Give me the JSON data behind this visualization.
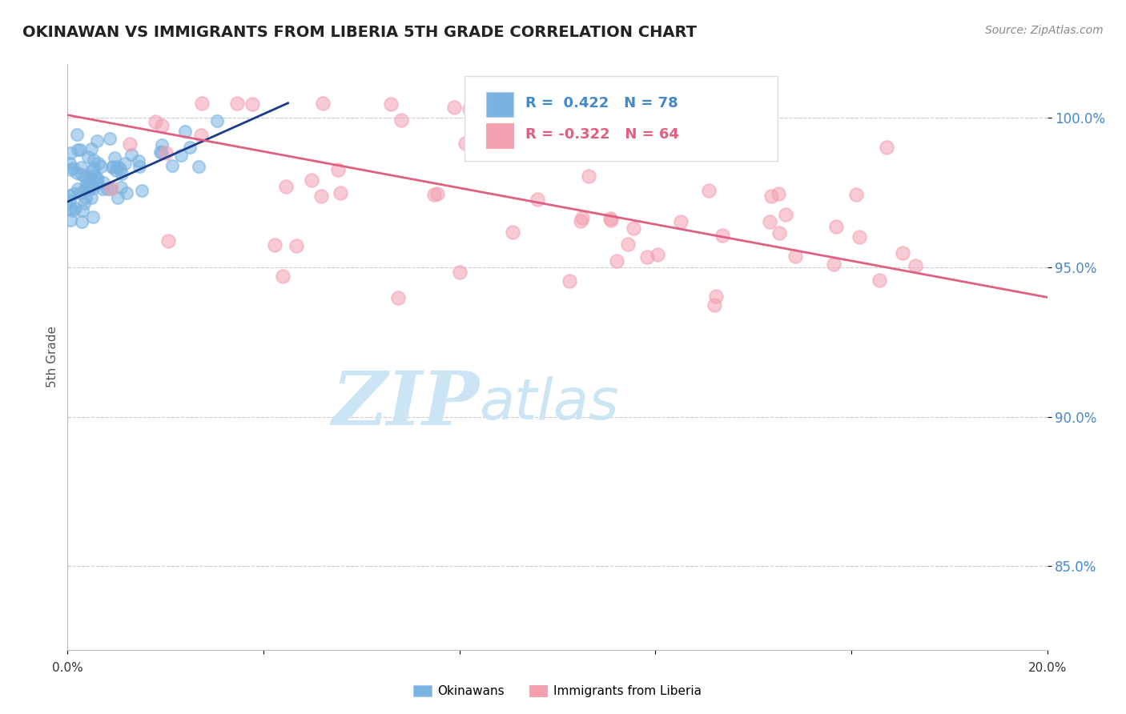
{
  "title": "OKINAWAN VS IMMIGRANTS FROM LIBERIA 5TH GRADE CORRELATION CHART",
  "source": "Source: ZipAtlas.com",
  "ylabel": "5th Grade",
  "y_ticks": [
    0.85,
    0.9,
    0.95,
    1.0
  ],
  "y_tick_labels": [
    "85.0%",
    "90.0%",
    "95.0%",
    "100.0%"
  ],
  "x_min": 0.0,
  "x_max": 0.2,
  "y_min": 0.822,
  "y_max": 1.018,
  "blue_R": 0.422,
  "blue_N": 78,
  "pink_R": -0.322,
  "pink_N": 64,
  "blue_color": "#7ab3e0",
  "pink_color": "#f4a0b0",
  "blue_line_color": "#1a3a8a",
  "pink_line_color": "#e06080",
  "legend_label_blue": "Okinawans",
  "legend_label_pink": "Immigrants from Liberia",
  "watermark_line1": "ZIP",
  "watermark_line2": "atlas",
  "watermark_color": "#cce5f5",
  "background_color": "#ffffff",
  "grid_color": "#cccccc",
  "blue_line_x0": 0.0,
  "blue_line_y0": 0.972,
  "blue_line_x1": 0.045,
  "blue_line_y1": 1.005,
  "pink_line_x0": 0.0,
  "pink_line_y0": 1.001,
  "pink_line_x1": 0.2,
  "pink_line_y1": 0.94
}
